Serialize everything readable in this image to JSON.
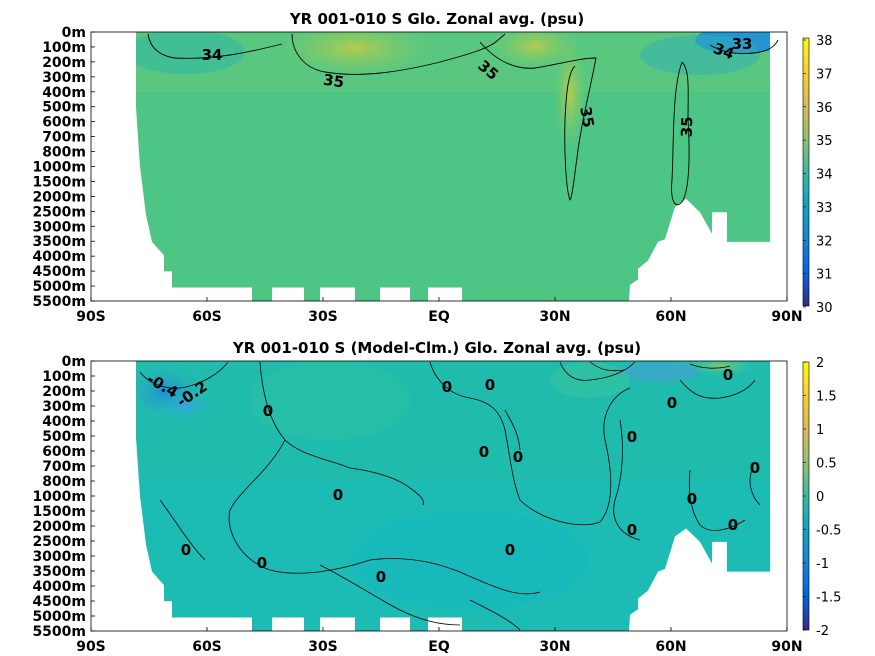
{
  "chart_data": [
    {
      "type": "heatmap",
      "title": "YR 001-010 S Glo. Zonal avg. (psu)",
      "x_tick_labels": [
        "90S",
        "60S",
        "30S",
        "EQ",
        "30N",
        "60N",
        "90N"
      ],
      "x_tick_values": [
        -90,
        -60,
        -30,
        0,
        30,
        60,
        90
      ],
      "y_tick_labels": [
        "0m",
        "100m",
        "200m",
        "300m",
        "400m",
        "500m",
        "600m",
        "700m",
        "800m",
        "1000m",
        "1500m",
        "2000m",
        "2500m",
        "3000m",
        "3500m",
        "4000m",
        "4500m",
        "5000m",
        "5500m"
      ],
      "colorbar_ticks": [
        "38",
        "37",
        "36",
        "35",
        "34",
        "33",
        "32",
        "31",
        "30"
      ],
      "colorbar_range": [
        30,
        38
      ],
      "contour_labels": [
        "34",
        "35",
        "35",
        "35",
        "35",
        "33",
        "34"
      ],
      "colormap": "parula"
    },
    {
      "type": "heatmap",
      "title": "YR 001-010 S (Model-Clm.) Glo. Zonal avg. (psu)",
      "x_tick_labels": [
        "90S",
        "60S",
        "30S",
        "EQ",
        "30N",
        "60N",
        "90N"
      ],
      "x_tick_values": [
        -90,
        -60,
        -30,
        0,
        30,
        60,
        90
      ],
      "y_tick_labels": [
        "0m",
        "100m",
        "200m",
        "300m",
        "400m",
        "500m",
        "600m",
        "700m",
        "800m",
        "1000m",
        "1500m",
        "2000m",
        "2500m",
        "3000m",
        "3500m",
        "4000m",
        "4500m",
        "5000m",
        "5500m"
      ],
      "colorbar_ticks": [
        "2",
        "1.5",
        "1",
        "0.5",
        "0",
        "-0.5",
        "-1",
        "-1.5",
        "-2"
      ],
      "colorbar_range": [
        -2,
        2
      ],
      "contour_labels": [
        "-0.4",
        "-0.2",
        "0",
        "0",
        "0",
        "0",
        "0",
        "0",
        "0",
        "0",
        "0",
        "0",
        "0",
        "0",
        "0",
        "0",
        "0",
        "0",
        "0"
      ],
      "colormap": "parula"
    }
  ]
}
